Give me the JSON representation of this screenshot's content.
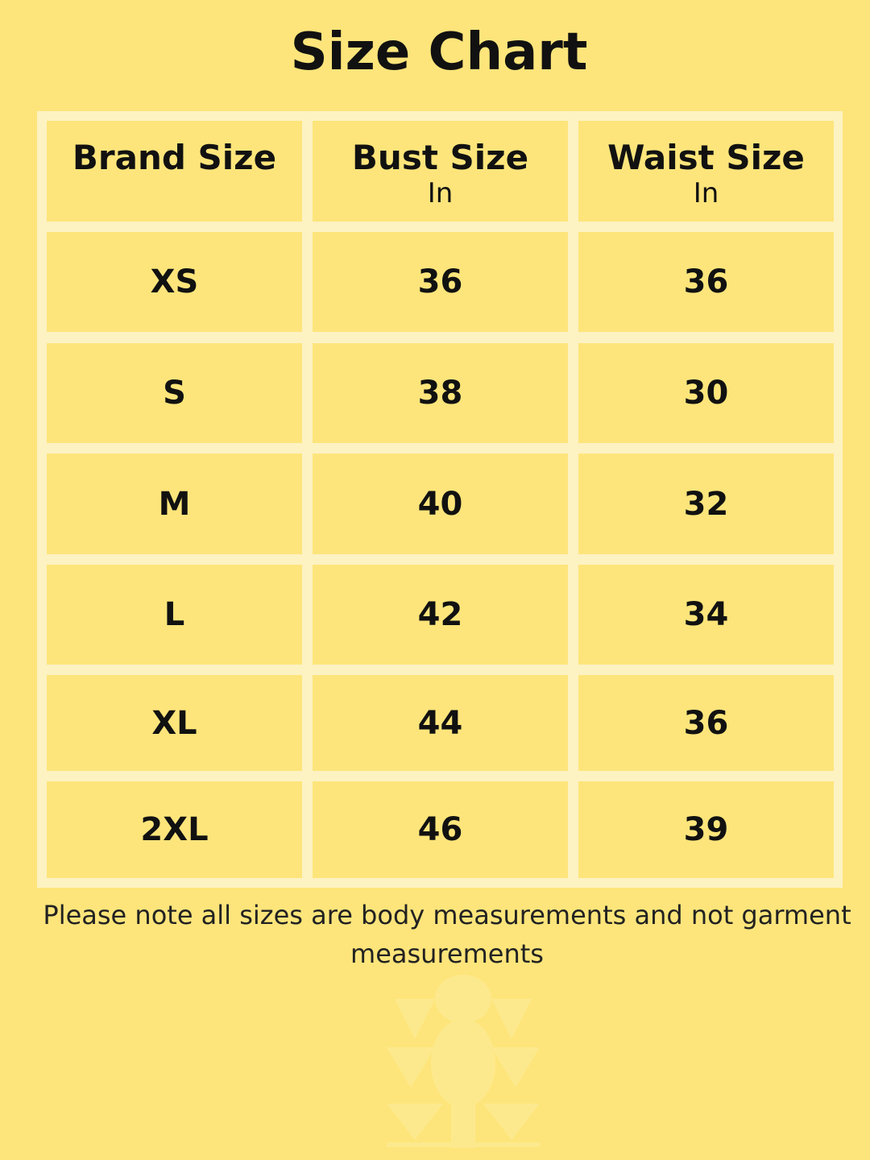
{
  "title": "Size Chart",
  "columns": [
    {
      "label": "Brand Size",
      "unit": ""
    },
    {
      "label": "Bust Size",
      "unit": "In"
    },
    {
      "label": "Waist Size",
      "unit": "In"
    }
  ],
  "rows": [
    [
      "XS",
      "36",
      "36"
    ],
    [
      "S",
      "38",
      "30"
    ],
    [
      "M",
      "40",
      "32"
    ],
    [
      "L",
      "42",
      "34"
    ],
    [
      "XL",
      "44",
      "36"
    ],
    [
      "2XL",
      "46",
      "39"
    ]
  ],
  "note": "Please note all sizes are body measurements and not garment measurements",
  "colors": {
    "background": "#fde57b",
    "grid": "#fdf2c2",
    "text": "#111111"
  }
}
